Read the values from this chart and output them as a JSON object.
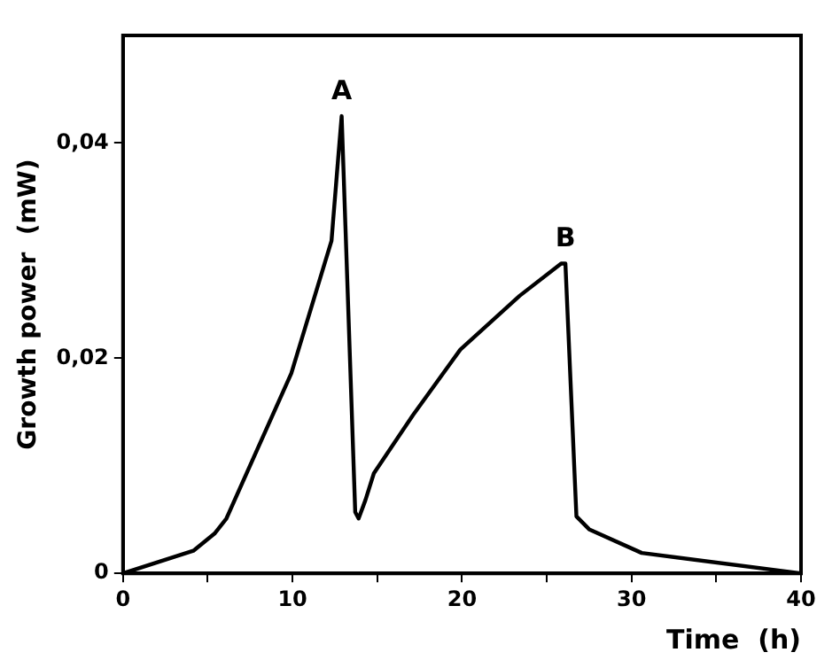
{
  "chart_data": {
    "type": "line",
    "xlabel": "Time  (h)",
    "ylabel": "Growth power  (mW)",
    "x": [
      0,
      4.15,
      5.4,
      6.1,
      9.93,
      12.3,
      12.7,
      12.9,
      13.7,
      13.9,
      14.3,
      14.8,
      17.1,
      19.9,
      23.4,
      25.85,
      26.1,
      26.75,
      27.5,
      30.6,
      40
    ],
    "series": [
      {
        "color": "#000000",
        "values": [
          0,
          0.0021,
          0.0037,
          0.0051,
          0.0186,
          0.0309,
          0.0387,
          0.0425,
          0.0057,
          0.0051,
          0.0068,
          0.0093,
          0.0147,
          0.0208,
          0.0258,
          0.0288,
          0.0288,
          0.0053,
          0.0041,
          0.0019,
          0
        ]
      }
    ],
    "xlim": [
      0,
      40
    ],
    "ylim": [
      0,
      0.05
    ],
    "xticks": [
      0,
      {
        "value": 5,
        "label": null
      },
      10,
      {
        "value": 15,
        "label": null
      },
      20,
      {
        "value": 25,
        "label": null
      },
      30,
      {
        "value": 35,
        "label": null
      },
      40
    ],
    "yticks": [
      0,
      {
        "value": 0.02,
        "label": "0,02"
      },
      {
        "value": 0.04,
        "label": "0,04"
      }
    ],
    "annotations": [
      {
        "text": "A",
        "x": 12.9,
        "y": 0.0425
      },
      {
        "text": "B",
        "x": 26.1,
        "y": 0.0288
      }
    ],
    "grid": false,
    "legend": false,
    "marker": "none",
    "line_style": "solid"
  }
}
